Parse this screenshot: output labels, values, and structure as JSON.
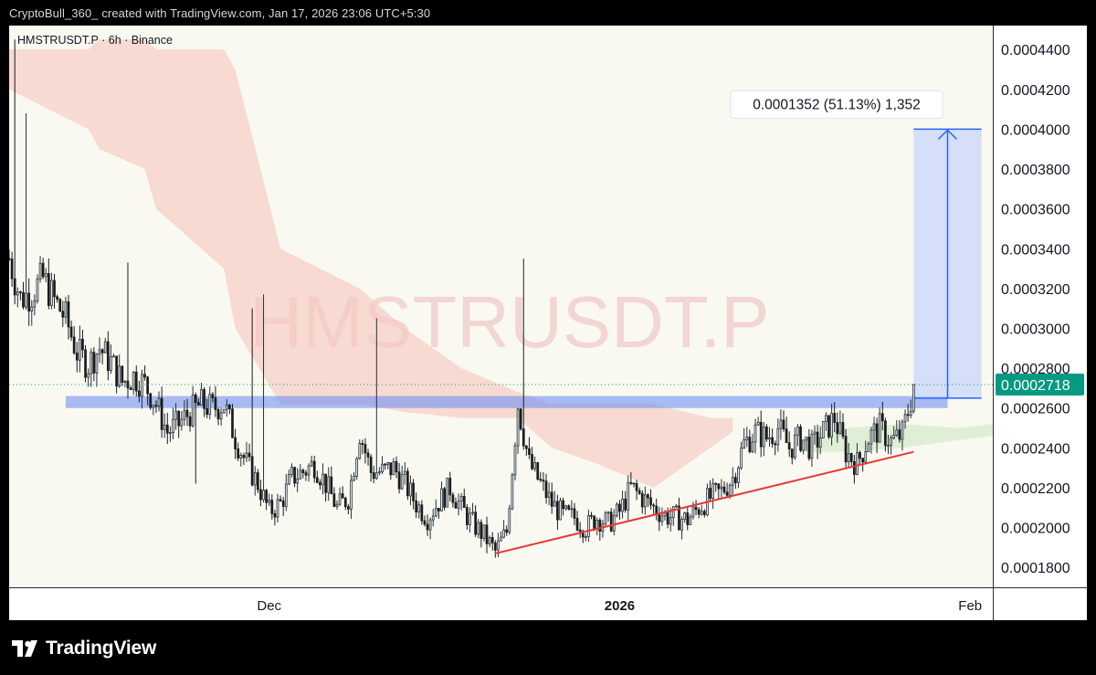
{
  "caption": "CryptoBull_360_ created with TradingView.com, Jan 17, 2026 23:06 UTC+5:30",
  "branding": {
    "name": "TradingView",
    "icon": "tradingview-logo-icon"
  },
  "colors": {
    "up": "#26313b",
    "down": "#1c1c1c",
    "last_price": "#089981",
    "cloud_bear": "#f6c9c2",
    "cloud_bull": "#cfe9c8",
    "measure": "#2962ff",
    "trendline": "#e53935",
    "resistance": "#6f8ff2"
  },
  "chart_data": {
    "type": "candlestick",
    "symbol_label": "HMSTRUSDT.P · 6h · Binance",
    "watermark": "HMSTRUSDT.P",
    "interval": "6h",
    "ylim": [
      0.00017,
      0.000452
    ],
    "y_ticks": [
      "0.0001800",
      "0.0002000",
      "0.0002200",
      "0.0002400",
      "0.0002600",
      "0.0002800",
      "0.0003000",
      "0.0003200",
      "0.0003400",
      "0.0003600",
      "0.0003800",
      "0.0004000",
      "0.0004200",
      "0.0004400"
    ],
    "x_ticks": [
      {
        "label": "Dec",
        "date": "2025-12-01",
        "bold": false
      },
      {
        "label": "2026",
        "date": "2026-01-01",
        "bold": true
      },
      {
        "label": "Feb",
        "date": "2026-02-01",
        "bold": false
      }
    ],
    "date_range": [
      "2025-11-08",
      "2026-02-03"
    ],
    "last_price": {
      "value": 0.0002718,
      "label": "0.0002718"
    },
    "candle_path": [
      [
        "2025-11-08",
        0.000335
      ],
      [
        "2025-11-09",
        0.000315
      ],
      [
        "2025-11-10",
        0.000318
      ],
      [
        "2025-11-11",
        0.000325
      ],
      [
        "2025-11-12",
        0.000314
      ],
      [
        "2025-11-13",
        0.000305
      ],
      [
        "2025-11-14",
        0.000288
      ],
      [
        "2025-11-15",
        0.000282
      ],
      [
        "2025-11-16",
        0.00029
      ],
      [
        "2025-11-17",
        0.000283
      ],
      [
        "2025-11-18",
        0.000273
      ],
      [
        "2025-11-19",
        0.000276
      ],
      [
        "2025-11-20",
        0.000272
      ],
      [
        "2025-11-21",
        0.000262
      ],
      [
        "2025-11-22",
        0.000248
      ],
      [
        "2025-11-23",
        0.000252
      ],
      [
        "2025-11-24",
        0.000258
      ],
      [
        "2025-11-25",
        0.000262
      ],
      [
        "2025-11-26",
        0.00026
      ],
      [
        "2025-11-27",
        0.000262
      ],
      [
        "2025-11-28",
        0.000245
      ],
      [
        "2025-11-29",
        0.000232
      ],
      [
        "2025-11-30",
        0.000222
      ],
      [
        "2025-12-01",
        0.000208
      ],
      [
        "2025-12-02",
        0.000212
      ],
      [
        "2025-12-03",
        0.000225
      ],
      [
        "2025-12-04",
        0.000228
      ],
      [
        "2025-12-05",
        0.000232
      ],
      [
        "2025-12-06",
        0.000222
      ],
      [
        "2025-12-07",
        0.00021
      ],
      [
        "2025-12-08",
        0.000215
      ],
      [
        "2025-12-09",
        0.000248
      ],
      [
        "2025-12-10",
        0.000228
      ],
      [
        "2025-12-11",
        0.000228
      ],
      [
        "2025-12-12",
        0.00023
      ],
      [
        "2025-12-13",
        0.000222
      ],
      [
        "2025-12-14",
        0.000212
      ],
      [
        "2025-12-15",
        0.000205
      ],
      [
        "2025-12-16",
        0.000213
      ],
      [
        "2025-12-17",
        0.00022
      ],
      [
        "2025-12-18",
        0.00021
      ],
      [
        "2025-12-19",
        0.000202
      ],
      [
        "2025-12-20",
        0.000196
      ],
      [
        "2025-12-21",
        0.000188
      ],
      [
        "2025-12-22",
        0.000198
      ],
      [
        "2025-12-23",
        0.000262
      ],
      [
        "2025-12-24",
        0.000232
      ],
      [
        "2025-12-25",
        0.000222
      ],
      [
        "2025-12-26",
        0.000212
      ],
      [
        "2025-12-27",
        0.000206
      ],
      [
        "2025-12-28",
        0.000205
      ],
      [
        "2025-12-29",
        0.0002
      ],
      [
        "2025-12-30",
        0.000205
      ],
      [
        "2025-12-31",
        0.000202
      ],
      [
        "2026-01-01",
        0.000208
      ],
      [
        "2026-01-02",
        0.00022
      ],
      [
        "2026-01-03",
        0.000215
      ],
      [
        "2026-01-04",
        0.00021
      ],
      [
        "2026-01-05",
        0.000206
      ],
      [
        "2026-01-06",
        0.000205
      ],
      [
        "2026-01-07",
        0.000204
      ],
      [
        "2026-01-08",
        0.00021
      ],
      [
        "2026-01-09",
        0.000215
      ],
      [
        "2026-01-10",
        0.000218
      ],
      [
        "2026-01-11",
        0.000225
      ],
      [
        "2026-01-12",
        0.000242
      ],
      [
        "2026-01-13",
        0.000248
      ],
      [
        "2026-01-14",
        0.000245
      ],
      [
        "2026-01-15",
        0.00025
      ],
      [
        "2026-01-16",
        0.00024
      ],
      [
        "2026-01-17",
        0.000245
      ],
      [
        "2026-01-18",
        0.00024
      ],
      [
        "2026-01-19",
        0.000248
      ],
      [
        "2026-01-20",
        0.000255
      ],
      [
        "2026-01-21",
        0.000238
      ],
      [
        "2026-01-22",
        0.000232
      ],
      [
        "2026-01-23",
        0.000245
      ],
      [
        "2026-01-24",
        0.00025
      ],
      [
        "2026-01-25",
        0.000243
      ],
      [
        "2026-01-26",
        0.000247
      ],
      [
        "2026-01-27",
        0.00027
      ]
    ],
    "spikes": [
      [
        "2025-11-08",
        0.000445
      ],
      [
        "2025-11-09",
        0.000408
      ],
      [
        "2025-11-18",
        0.000333
      ],
      [
        "2025-11-29",
        0.00031
      ],
      [
        "2025-11-30",
        0.000317
      ],
      [
        "2025-12-10",
        0.000305
      ],
      [
        "2025-12-23",
        0.000335
      ]
    ],
    "drops": [
      [
        "2025-11-24",
        0.000222
      ]
    ],
    "cloud_bear": [
      [
        "2025-11-08",
        0.00044,
        0.00042
      ],
      [
        "2025-11-15",
        0.00044,
        0.0004
      ],
      [
        "2025-11-16",
        0.000445,
        0.00039
      ],
      [
        "2025-11-20",
        0.000445,
        0.00038
      ],
      [
        "2025-11-21",
        0.00044,
        0.00036
      ],
      [
        "2025-11-27",
        0.00044,
        0.00033
      ],
      [
        "2025-11-28",
        0.00043,
        0.0003
      ],
      [
        "2025-12-02",
        0.00034,
        0.000262
      ],
      [
        "2025-12-09",
        0.00032,
        0.000262
      ],
      [
        "2025-12-13",
        0.0003,
        0.000258
      ],
      [
        "2025-12-18",
        0.00028,
        0.000255
      ],
      [
        "2025-12-23",
        0.000268,
        0.000255
      ],
      [
        "2025-12-26",
        0.000262,
        0.00024
      ],
      [
        "2025-12-30",
        0.000262,
        0.000232
      ],
      [
        "2026-01-04",
        0.000262,
        0.00022
      ],
      [
        "2026-01-09",
        0.000255,
        0.00024
      ],
      [
        "2026-01-11",
        0.000255,
        0.000248
      ]
    ],
    "cloud_bull": [
      [
        "2026-01-17",
        0.000245,
        0.000238
      ],
      [
        "2026-01-21",
        0.00025,
        0.000238
      ],
      [
        "2026-01-26",
        0.000252,
        0.00024
      ],
      [
        "2026-01-31",
        0.00025,
        0.000244
      ],
      [
        "2026-02-03",
        0.000252,
        0.000246
      ]
    ],
    "trendline": [
      [
        "2025-12-21",
        0.000187
      ],
      [
        "2026-01-27",
        0.000238
      ]
    ],
    "resistance_zone": {
      "start": "2025-11-13",
      "end": "2026-01-30",
      "low": 0.00026,
      "high": 0.000266
    },
    "measure": {
      "start": "2026-01-27",
      "end": "2026-02-02",
      "from": 0.000265,
      "to": 0.0004,
      "label": "0.0001352 (51.13%) 1,352"
    }
  }
}
